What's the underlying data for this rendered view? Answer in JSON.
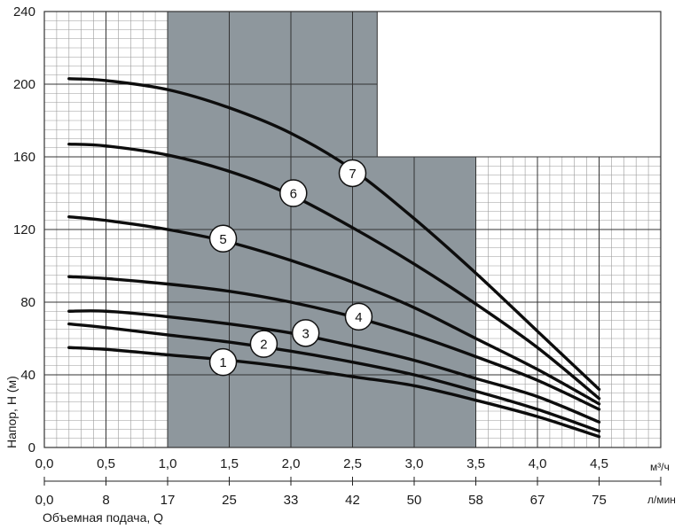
{
  "chart_data": {
    "type": "line",
    "xlabel": "Объемная подача, Q",
    "ylabel": "Напор, H (м)",
    "xlim": [
      0,
      5
    ],
    "ylim": [
      0,
      240
    ],
    "x_ticks": [
      "0,0",
      "0,5",
      "1,0",
      "1,5",
      "2,0",
      "2,5",
      "3,0",
      "3,5",
      "4,0",
      "4,5"
    ],
    "x_unit": "м³/ч",
    "x2_ticks": [
      "0,0",
      "8",
      "17",
      "25",
      "33",
      "42",
      "50",
      "58",
      "67",
      "75"
    ],
    "x2_unit": "л/мин",
    "y_ticks": [
      "0",
      "40",
      "80",
      "120",
      "160",
      "200",
      "240"
    ],
    "grid": true,
    "shaded_range": [
      1.0,
      3.5
    ],
    "series": [
      {
        "name": "1",
        "x": [
          0.2,
          0.5,
          1.0,
          1.5,
          2.0,
          2.5,
          3.0,
          3.5,
          4.0,
          4.5
        ],
        "values": [
          55,
          54,
          51,
          48,
          44,
          39,
          34,
          26,
          17,
          6
        ]
      },
      {
        "name": "2",
        "x": [
          0.2,
          0.5,
          1.0,
          1.5,
          2.0,
          2.5,
          3.0,
          3.5,
          4.0,
          4.5
        ],
        "values": [
          68,
          66,
          62,
          58,
          53,
          47,
          40,
          31,
          21,
          9
        ]
      },
      {
        "name": "3",
        "x": [
          0.2,
          0.5,
          1.0,
          1.5,
          2.0,
          2.5,
          3.0,
          3.5,
          4.0,
          4.5
        ],
        "values": [
          75,
          75,
          72,
          68,
          63,
          56,
          48,
          38,
          28,
          14
        ]
      },
      {
        "name": "4",
        "x": [
          0.2,
          0.5,
          1.0,
          1.5,
          2.0,
          2.5,
          3.0,
          3.5,
          4.0,
          4.5
        ],
        "values": [
          94,
          93,
          90,
          86,
          80,
          72,
          62,
          50,
          37,
          21
        ]
      },
      {
        "name": "5",
        "x": [
          0.2,
          0.5,
          1.0,
          1.5,
          2.0,
          2.5,
          3.0,
          3.5,
          4.0,
          4.5
        ],
        "values": [
          127,
          125,
          120,
          113,
          103,
          91,
          77,
          60,
          43,
          24
        ]
      },
      {
        "name": "6",
        "x": [
          0.2,
          0.5,
          1.0,
          1.5,
          2.0,
          2.5,
          3.0,
          3.5,
          4.0,
          4.5
        ],
        "values": [
          167,
          166,
          161,
          152,
          139,
          121,
          101,
          79,
          55,
          27
        ]
      },
      {
        "name": "7",
        "x": [
          0.2,
          0.5,
          1.0,
          1.5,
          2.0,
          2.5,
          3.0,
          3.5,
          4.0,
          4.5
        ],
        "values": [
          203,
          202,
          197,
          187,
          173,
          153,
          126,
          96,
          64,
          32
        ]
      }
    ],
    "curve_labels": [
      {
        "label": "1",
        "x": 1.45,
        "y": 47
      },
      {
        "label": "2",
        "x": 1.78,
        "y": 57
      },
      {
        "label": "3",
        "x": 2.12,
        "y": 63
      },
      {
        "label": "4",
        "x": 2.55,
        "y": 72
      },
      {
        "label": "5",
        "x": 1.45,
        "y": 115
      },
      {
        "label": "6",
        "x": 2.02,
        "y": 140
      },
      {
        "label": "7",
        "x": 2.5,
        "y": 151
      }
    ]
  }
}
